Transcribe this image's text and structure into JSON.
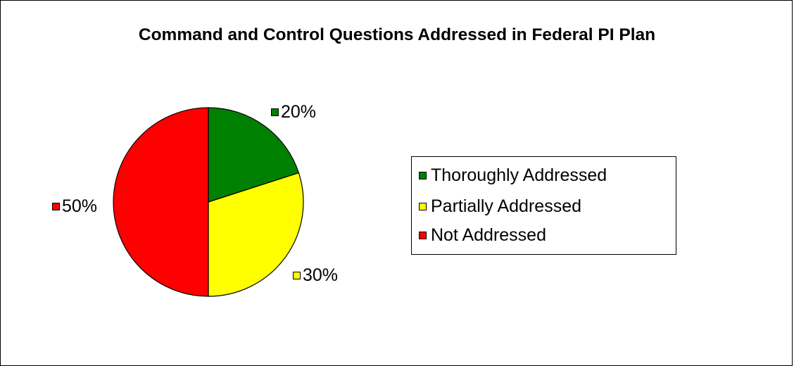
{
  "chart_data": {
    "type": "pie",
    "title": "Command and Control Questions Addressed in Federal PI Plan",
    "categories": [
      "Thoroughly Addressed",
      "Partially Addressed",
      "Not Addressed"
    ],
    "values": [
      20,
      30,
      50
    ],
    "data_labels": [
      "20%",
      "30%",
      "50%"
    ],
    "colors": [
      "#008000",
      "#FFFF00",
      "#FF0000"
    ],
    "legend_position": "right",
    "start_angle_deg": 0,
    "direction": "clockwise"
  }
}
